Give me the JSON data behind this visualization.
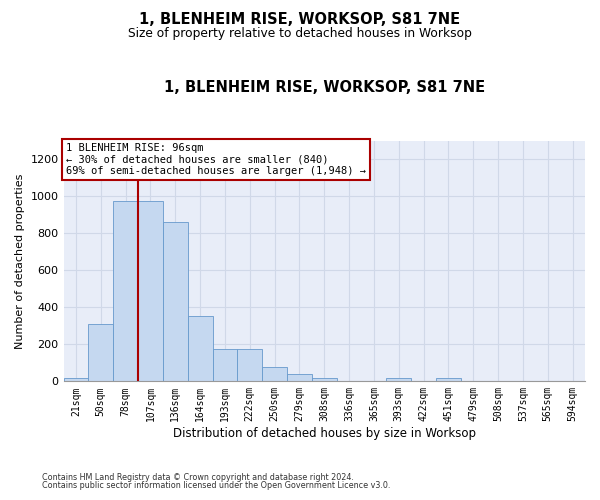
{
  "title": "1, BLENHEIM RISE, WORKSOP, S81 7NE",
  "subtitle": "Size of property relative to detached houses in Worksop",
  "xlabel": "Distribution of detached houses by size in Worksop",
  "ylabel": "Number of detached properties",
  "annotation_line1": "1 BLENHEIM RISE: 96sqm",
  "annotation_line2": "← 30% of detached houses are smaller (840)",
  "annotation_line3": "69% of semi-detached houses are larger (1,948) →",
  "red_line_bin_index": 2.5,
  "bar_color": "#c5d8f0",
  "bar_edge_color": "#6699cc",
  "red_line_color": "#aa0000",
  "grid_color": "#d0d8e8",
  "background_color": "#e8edf8",
  "ylim": [
    0,
    1300
  ],
  "yticks": [
    0,
    200,
    400,
    600,
    800,
    1000,
    1200
  ],
  "bins": [
    "21sqm",
    "50sqm",
    "78sqm",
    "107sqm",
    "136sqm",
    "164sqm",
    "193sqm",
    "222sqm",
    "250sqm",
    "279sqm",
    "308sqm",
    "336sqm",
    "365sqm",
    "393sqm",
    "422sqm",
    "451sqm",
    "479sqm",
    "508sqm",
    "537sqm",
    "565sqm",
    "594sqm"
  ],
  "values": [
    20,
    310,
    975,
    975,
    860,
    355,
    175,
    175,
    75,
    40,
    20,
    0,
    0,
    20,
    0,
    20,
    0,
    0,
    0,
    0,
    0
  ],
  "footer1": "Contains HM Land Registry data © Crown copyright and database right 2024.",
  "footer2": "Contains public sector information licensed under the Open Government Licence v3.0."
}
